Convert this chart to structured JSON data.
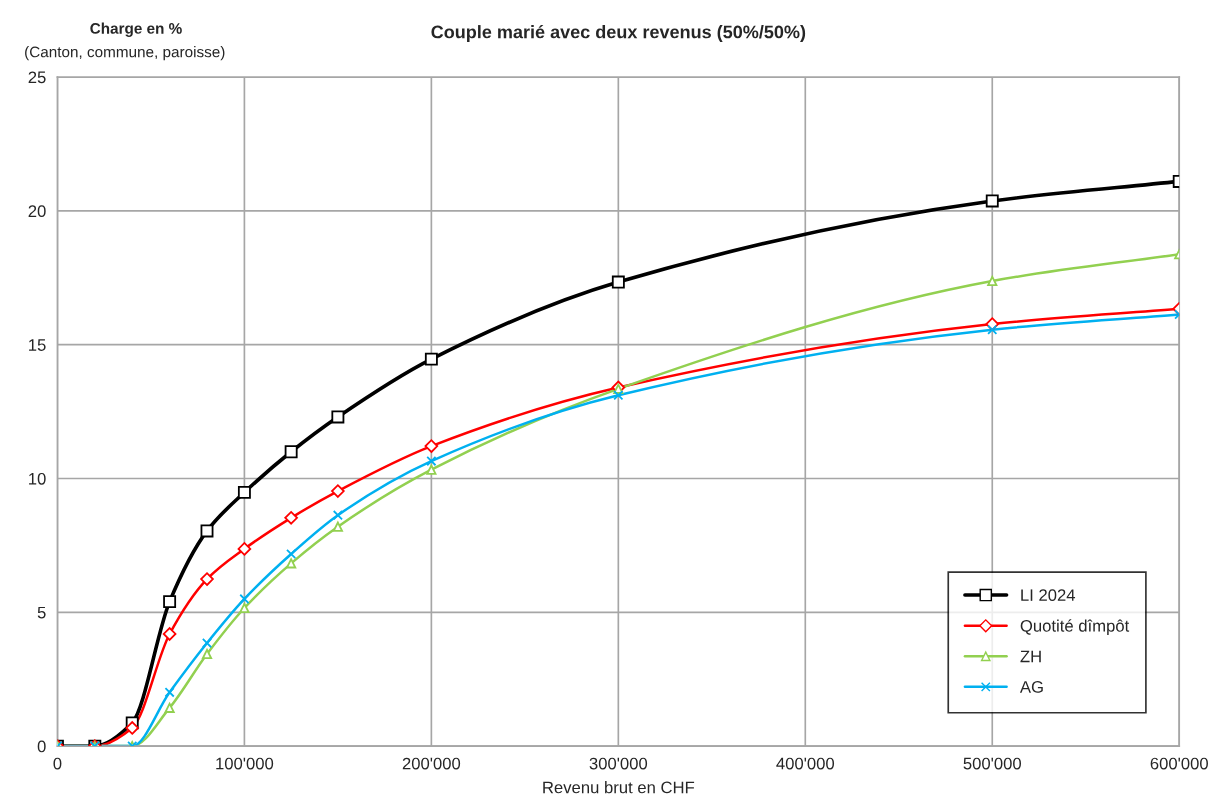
{
  "chart_data": {
    "type": "line",
    "title": "Couple marié avec deux revenus (50%/50%)",
    "xlabel": "Revenu brut en CHF",
    "ylabel": "Charge en %",
    "annotations": [
      "(Canton, commune, paroisse)"
    ],
    "x": [
      0,
      20000,
      40000,
      60000,
      80000,
      100000,
      125000,
      150000,
      200000,
      300000,
      500000,
      600000
    ],
    "series": [
      {
        "name": "LI 2024",
        "color": "#000000",
        "marker": "square",
        "values": [
          0,
          0,
          0.87,
          5.4,
          8.04,
          9.48,
          11.0,
          12.3,
          14.46,
          17.34,
          20.37,
          21.1
        ]
      },
      {
        "name": "Quotité dîmpôt",
        "color": "#ff0000",
        "marker": "diamond",
        "values": [
          0,
          0,
          0.68,
          4.19,
          6.24,
          7.37,
          8.53,
          9.53,
          11.21,
          13.4,
          15.77,
          16.34
        ]
      },
      {
        "name": "ZH",
        "color": "#92d050",
        "marker": "triangle",
        "values": [
          0,
          0,
          0,
          1.43,
          3.44,
          5.16,
          6.83,
          8.2,
          10.33,
          13.35,
          17.38,
          18.38
        ]
      },
      {
        "name": "AG",
        "color": "#00b0f0",
        "marker": "cross",
        "values": [
          0,
          0,
          0,
          2.01,
          3.85,
          5.5,
          7.18,
          8.63,
          10.65,
          13.11,
          15.56,
          16.13
        ]
      }
    ],
    "xlim": [
      0,
      600000
    ],
    "ylim": [
      0,
      25
    ],
    "xticks": [
      0,
      {
        "value": 100000,
        "label": "100'000"
      },
      {
        "value": 200000,
        "label": "200'000"
      },
      {
        "value": 300000,
        "label": "300'000"
      },
      {
        "value": 400000,
        "label": "400'000"
      },
      {
        "value": 500000,
        "label": "500'000"
      },
      {
        "value": 600000,
        "label": "600'000"
      }
    ],
    "yticks": [
      0,
      5,
      10,
      15,
      20,
      25
    ],
    "grid": true,
    "legend": "bottom right",
    "line_style": "solid"
  }
}
